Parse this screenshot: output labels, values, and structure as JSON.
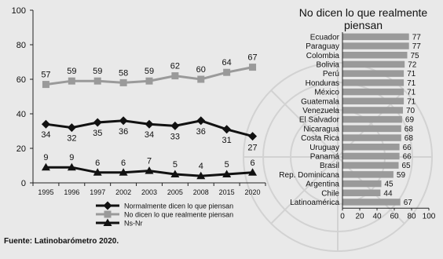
{
  "source": "Fuente: Latinobarómetro 2020.",
  "chart_data": [
    {
      "type": "line",
      "categories": [
        "1995",
        "1996",
        "1997",
        "2002",
        "2003",
        "2005",
        "2008",
        "2015",
        "2020"
      ],
      "ylim": [
        0,
        100
      ],
      "yticks": [
        "0",
        "20",
        "40",
        "60",
        "80",
        "100"
      ],
      "grid": false,
      "legend_position": "bottom",
      "series": [
        {
          "name": "Normalmente dicen lo que piensan",
          "values": [
            34,
            32,
            35,
            36,
            34,
            33,
            36,
            31,
            27
          ],
          "color": "#111111",
          "marker": "diamond"
        },
        {
          "name": "No dicen lo que realmente piensan",
          "values": [
            57,
            59,
            59,
            58,
            59,
            62,
            60,
            64,
            67
          ],
          "color": "#9a9a9a",
          "marker": "square"
        },
        {
          "name": "Ns-Nr",
          "values": [
            9,
            9,
            6,
            6,
            7,
            5,
            4,
            5,
            6
          ],
          "color": "#111111",
          "marker": "triangle"
        }
      ]
    },
    {
      "type": "bar",
      "orientation": "horizontal",
      "title": "No dicen lo que realmente piensan",
      "categories": [
        "Ecuador",
        "Paraguay",
        "Colombia",
        "Bolivia",
        "Perú",
        "Honduras",
        "México",
        "Guatemala",
        "Venezuela",
        "El Salvador",
        "Nicaragua",
        "Costa Rica",
        "Uruguay",
        "Panamá",
        "Brasil",
        "Rep. Dominicana",
        "Argentina",
        "Chile",
        "Latinoamérica"
      ],
      "values": [
        77,
        77,
        75,
        72,
        71,
        71,
        71,
        71,
        70,
        69,
        68,
        68,
        66,
        66,
        65,
        59,
        45,
        44,
        67
      ],
      "xlim": [
        0,
        100
      ],
      "xticks": [
        "0",
        "20",
        "40",
        "60",
        "80",
        "100"
      ],
      "bar_color": "#9a9a9a"
    }
  ]
}
